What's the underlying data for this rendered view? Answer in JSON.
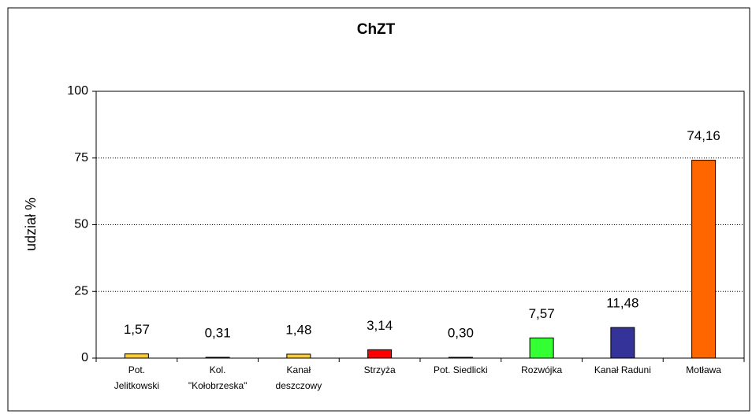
{
  "chart_data": {
    "type": "bar",
    "title": "ChZT",
    "y_label": "udział %",
    "categories": [
      "Pot.\nJelitkowski",
      "Kol.\n\"Kołobrzeska\"",
      "Kanał\ndeszczowy",
      "Strzyża",
      "Pot. Siedlicki",
      "Rozwójka",
      "Kanał Raduni",
      "Motława"
    ],
    "values": [
      1.57,
      0.31,
      1.48,
      3.14,
      0.3,
      7.57,
      11.48,
      74.16
    ],
    "value_labels": [
      "1,57",
      "0,31",
      "1,48",
      "3,14",
      "0,30",
      "7,57",
      "11,48",
      "74,16"
    ],
    "colors": [
      "#ffcc33",
      "#000000",
      "#ffcc33",
      "#ff0000",
      "#000000",
      "#33ff33",
      "#333399",
      "#ff6600"
    ],
    "ylim": [
      0,
      100
    ],
    "yticks": [
      0,
      25,
      50,
      75,
      100
    ],
    "grid": true
  }
}
